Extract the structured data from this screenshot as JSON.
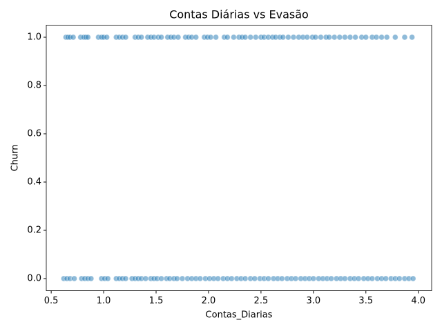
{
  "chart_data": {
    "type": "scatter",
    "title": "Contas Diárias vs Evasão",
    "x_label": "Contas_Diarias",
    "y_label": "Churn",
    "color": "#1f77b4",
    "xlim": [
      0.453,
      4.127
    ],
    "ylim": [
      -0.05,
      1.05
    ],
    "xticks": [
      0.5,
      {
        "value": 1.0,
        "label": "1.0"
      },
      1.5,
      {
        "value": 2.0,
        "label": "2.0"
      },
      2.5,
      {
        "value": 3.0,
        "label": "3.0"
      },
      3.5,
      {
        "value": 4.0,
        "label": "4.0"
      }
    ],
    "yticks": [
      {
        "value": 0,
        "label": "0.0"
      },
      {
        "value": 0.2,
        "label": "0.2"
      },
      {
        "value": 0.4,
        "label": "0.4"
      },
      {
        "value": 0.6,
        "label": "0.6"
      },
      {
        "value": 0.8,
        "label": "0.8"
      },
      {
        "value": 1.0,
        "label": "1.0"
      }
    ],
    "series": [
      {
        "x": [
          0.64,
          0.66,
          0.68,
          0.71,
          0.78,
          0.81,
          0.83,
          0.85,
          0.95,
          0.98,
          1.0,
          1.03,
          1.12,
          1.15,
          1.18,
          1.21,
          1.3,
          1.33,
          1.36,
          1.42,
          1.45,
          1.48,
          1.52,
          1.55,
          1.61,
          1.64,
          1.67,
          1.71,
          1.78,
          1.81,
          1.84,
          1.88,
          1.96,
          1.99,
          2.02,
          2.07,
          2.15,
          2.18,
          2.24,
          2.29,
          2.32,
          2.35,
          2.4,
          2.45,
          2.5,
          2.53,
          2.57,
          2.61,
          2.64,
          2.68,
          2.71,
          2.76,
          2.81,
          2.86,
          2.9,
          2.94,
          2.99,
          3.02,
          3.07,
          3.12,
          3.15,
          3.2,
          3.25,
          3.3,
          3.35,
          3.4,
          3.46,
          3.5,
          3.56,
          3.6,
          3.65,
          3.7,
          3.78,
          3.87,
          3.94
        ],
        "values": [
          1,
          1,
          1,
          1,
          1,
          1,
          1,
          1,
          1,
          1,
          1,
          1,
          1,
          1,
          1,
          1,
          1,
          1,
          1,
          1,
          1,
          1,
          1,
          1,
          1,
          1,
          1,
          1,
          1,
          1,
          1,
          1,
          1,
          1,
          1,
          1,
          1,
          1,
          1,
          1,
          1,
          1,
          1,
          1,
          1,
          1,
          1,
          1,
          1,
          1,
          1,
          1,
          1,
          1,
          1,
          1,
          1,
          1,
          1,
          1,
          1,
          1,
          1,
          1,
          1,
          1,
          1,
          1,
          1,
          1,
          1,
          1,
          1,
          1,
          1
        ]
      },
      {
        "x": [
          0.62,
          0.65,
          0.68,
          0.72,
          0.79,
          0.82,
          0.85,
          0.88,
          0.98,
          1.01,
          1.04,
          1.12,
          1.15,
          1.18,
          1.21,
          1.27,
          1.3,
          1.33,
          1.36,
          1.4,
          1.45,
          1.48,
          1.51,
          1.55,
          1.6,
          1.63,
          1.67,
          1.7,
          1.75,
          1.8,
          1.84,
          1.88,
          1.92,
          1.97,
          2.01,
          2.05,
          2.09,
          2.14,
          2.18,
          2.22,
          2.27,
          2.31,
          2.35,
          2.4,
          2.44,
          2.49,
          2.53,
          2.57,
          2.62,
          2.66,
          2.7,
          2.75,
          2.79,
          2.83,
          2.88,
          2.92,
          2.96,
          3.0,
          3.05,
          3.09,
          3.13,
          3.17,
          3.22,
          3.26,
          3.3,
          3.35,
          3.39,
          3.43,
          3.48,
          3.52,
          3.56,
          3.61,
          3.65,
          3.69,
          3.74,
          3.78,
          3.82,
          3.87,
          3.91,
          3.95
        ],
        "values": [
          0,
          0,
          0,
          0,
          0,
          0,
          0,
          0,
          0,
          0,
          0,
          0,
          0,
          0,
          0,
          0,
          0,
          0,
          0,
          0,
          0,
          0,
          0,
          0,
          0,
          0,
          0,
          0,
          0,
          0,
          0,
          0,
          0,
          0,
          0,
          0,
          0,
          0,
          0,
          0,
          0,
          0,
          0,
          0,
          0,
          0,
          0,
          0,
          0,
          0,
          0,
          0,
          0,
          0,
          0,
          0,
          0,
          0,
          0,
          0,
          0,
          0,
          0,
          0,
          0,
          0,
          0,
          0,
          0,
          0,
          0,
          0,
          0,
          0,
          0,
          0,
          0,
          0,
          0,
          0
        ]
      }
    ]
  }
}
